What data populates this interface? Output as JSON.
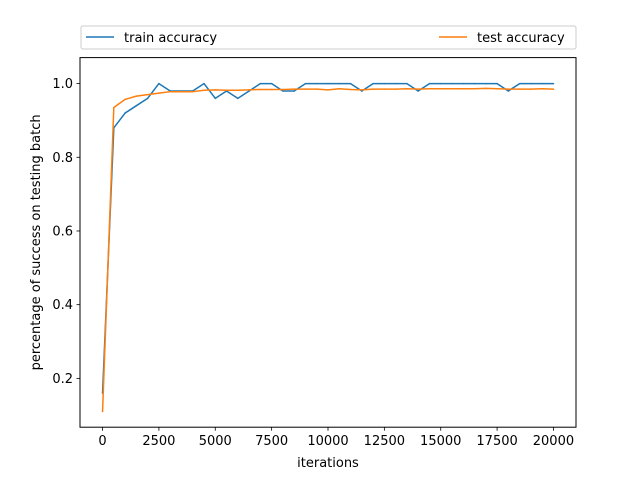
{
  "chart_data": {
    "type": "line",
    "xlabel": "iterations",
    "ylabel": "percentage of success on testing batch",
    "xlim": [
      -1000,
      21000
    ],
    "ylim": [
      0.0675,
      1.0705
    ],
    "xticks": [
      0,
      2500,
      5000,
      7500,
      10000,
      12500,
      15000,
      17500,
      20000
    ],
    "xtick_labels": [
      "0",
      "2500",
      "5000",
      "7500",
      "10000",
      "12500",
      "15000",
      "17500",
      "20000"
    ],
    "yticks": [
      0.2,
      0.4,
      0.6,
      0.8,
      1.0
    ],
    "ytick_labels": [
      "0.2",
      "0.4",
      "0.6",
      "0.8",
      "1.0"
    ],
    "grid": false,
    "legend": {
      "placement": "top, above plot",
      "columns": 2
    },
    "series": [
      {
        "name": "train accuracy",
        "color": "#1f77b4",
        "x": [
          0,
          500,
          1000,
          1500,
          2000,
          2500,
          3000,
          3500,
          4000,
          4500,
          5000,
          5500,
          6000,
          6500,
          7000,
          7500,
          8000,
          8500,
          9000,
          9500,
          10000,
          10500,
          11000,
          11500,
          12000,
          12500,
          13000,
          13500,
          14000,
          14500,
          15000,
          15500,
          16000,
          16500,
          17000,
          17500,
          18000,
          18500,
          19000,
          19500,
          20000
        ],
        "y": [
          0.16,
          0.88,
          0.92,
          0.94,
          0.96,
          1.0,
          0.98,
          0.98,
          0.98,
          1.0,
          0.96,
          0.98,
          0.96,
          0.98,
          1.0,
          1.0,
          0.98,
          0.98,
          1.0,
          1.0,
          1.0,
          1.0,
          1.0,
          0.98,
          1.0,
          1.0,
          1.0,
          1.0,
          0.98,
          1.0,
          1.0,
          1.0,
          1.0,
          1.0,
          1.0,
          1.0,
          0.98,
          1.0,
          1.0,
          1.0,
          1.0
        ]
      },
      {
        "name": "test accuracy",
        "color": "#ff7f0e",
        "x": [
          0,
          500,
          1000,
          1500,
          2000,
          2500,
          3000,
          3500,
          4000,
          4500,
          5000,
          5500,
          6000,
          6500,
          7000,
          7500,
          8000,
          8500,
          9000,
          9500,
          10000,
          10500,
          11000,
          11500,
          12000,
          12500,
          13000,
          13500,
          14000,
          14500,
          15000,
          15500,
          16000,
          16500,
          17000,
          17500,
          18000,
          18500,
          19000,
          19500,
          20000
        ],
        "y": [
          0.11,
          0.935,
          0.957,
          0.966,
          0.97,
          0.974,
          0.978,
          0.978,
          0.978,
          0.982,
          0.983,
          0.982,
          0.982,
          0.983,
          0.984,
          0.984,
          0.984,
          0.985,
          0.985,
          0.985,
          0.983,
          0.986,
          0.984,
          0.983,
          0.985,
          0.985,
          0.985,
          0.986,
          0.985,
          0.986,
          0.986,
          0.986,
          0.986,
          0.986,
          0.987,
          0.986,
          0.985,
          0.985,
          0.985,
          0.986,
          0.985
        ]
      }
    ]
  }
}
